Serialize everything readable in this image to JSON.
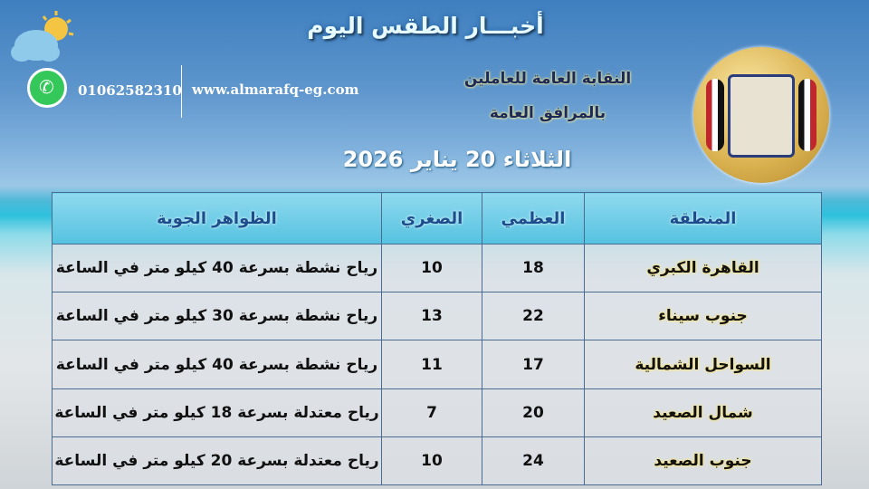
{
  "header": {
    "title": "أخبـــار الطقس اليوم",
    "phone": "01062582310",
    "website": "www.almarafq-eg.com",
    "org_line1": "النقابة العامة للعاملين",
    "org_line2": "بالمرافق العامة",
    "date": "الثلاثاء 20 يناير 2026",
    "icons": [
      "partly-cloudy-icon",
      "whatsapp-icon",
      "union-logo"
    ]
  },
  "table": {
    "headers": [
      "المنطقة",
      "العظمي",
      "الصغري",
      "الظواهر الجوية"
    ],
    "rows": [
      {
        "region": "القاهرة الكبري",
        "max": "18",
        "min": "10",
        "desc": "رياح نشطة بسرعة 40 كيلو متر في الساعة"
      },
      {
        "region": "جنوب سيناء",
        "max": "22",
        "min": "13",
        "desc": "رياح نشطة بسرعة 30 كيلو متر في الساعة"
      },
      {
        "region": "السواحل الشمالية",
        "max": "17",
        "min": "11",
        "desc": "رياح نشطة بسرعة 40 كيلو متر في الساعة"
      },
      {
        "region": "شمال الصعيد",
        "max": "20",
        "min": "7",
        "desc": "رياح معتدلة بسرعة 18 كيلو متر في الساعة"
      },
      {
        "region": "جنوب الصعيد",
        "max": "24",
        "min": "10",
        "desc": "رياح معتدلة بسرعة 20 كيلو متر في الساعة"
      }
    ]
  }
}
